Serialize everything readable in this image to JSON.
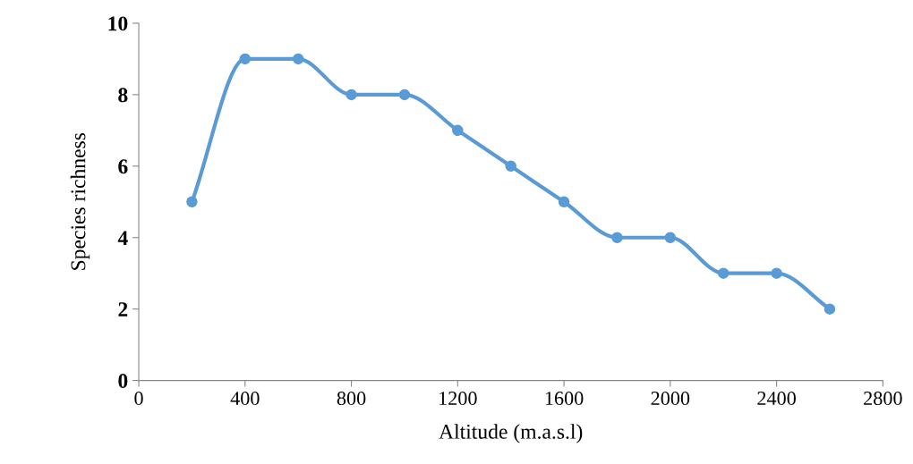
{
  "chart_data": {
    "type": "line",
    "xlabel": "Altitude (m.a.s.l)",
    "ylabel": "Species richness",
    "x": [
      200,
      400,
      600,
      800,
      1000,
      1200,
      1400,
      1600,
      1800,
      2000,
      2200,
      2400,
      2600
    ],
    "series": [
      {
        "color": "#5b9bd5",
        "values": [
          5,
          9,
          9,
          8,
          8,
          7,
          6,
          5,
          4,
          4,
          3,
          3,
          2
        ]
      }
    ],
    "xlim": [
      0,
      2800
    ],
    "xticks": [
      0,
      400,
      800,
      1200,
      1600,
      2000,
      2400,
      2800
    ],
    "ylim": [
      0,
      10
    ],
    "yticks": [
      0,
      2,
      4,
      6,
      8,
      10
    ],
    "marker": "circle",
    "line_style": "solid",
    "grid": false,
    "legend": false
  }
}
